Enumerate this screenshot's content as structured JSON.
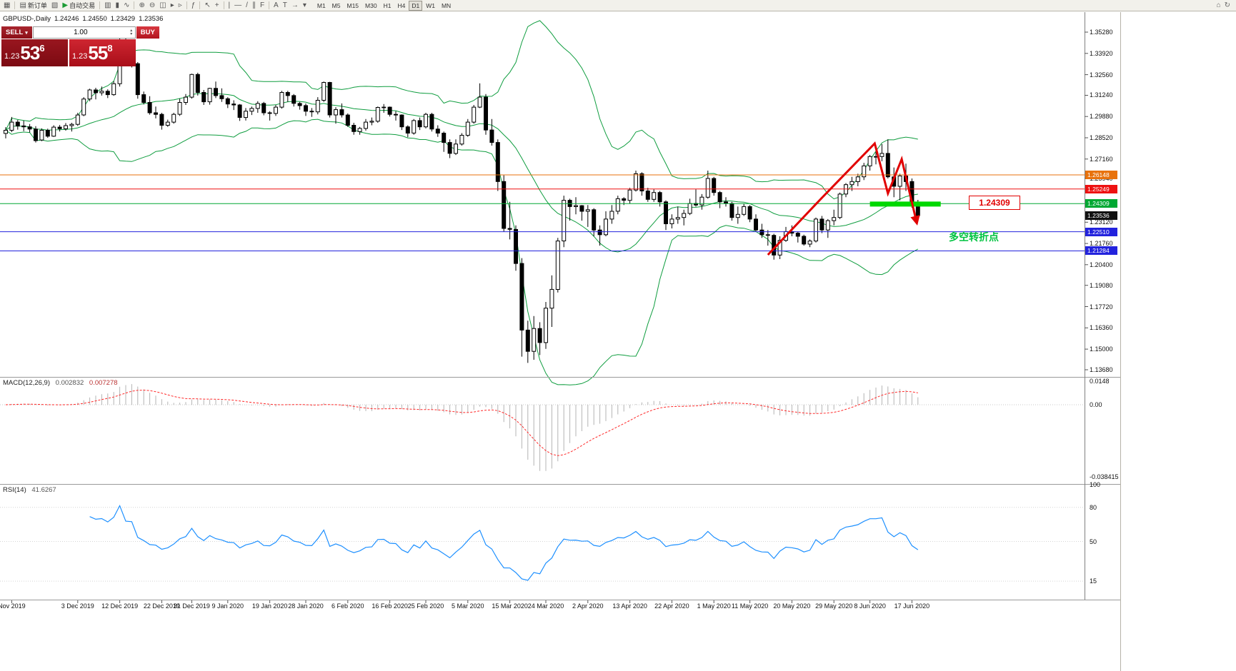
{
  "toolbar": {
    "groups": [
      [
        {
          "name": "charts-grid-button",
          "glyph": "▦"
        }
      ],
      [
        {
          "name": "new-order-button",
          "glyph": "▤",
          "label": "新订单"
        },
        {
          "name": "chart-window-button",
          "glyph": "▧"
        },
        {
          "name": "autotrading-button",
          "glyph": "▶",
          "glyph_color": "#1c9b35",
          "label": "自动交易"
        }
      ],
      [
        {
          "name": "bar-chart-button",
          "glyph": "▥"
        },
        {
          "name": "candlestick-chart-button",
          "glyph": "▮"
        },
        {
          "name": "line-chart-button",
          "glyph": "∿"
        }
      ],
      [
        {
          "name": "zoom-in-button",
          "glyph": "⊕"
        },
        {
          "name": "zoom-out-button",
          "glyph": "⊖"
        },
        {
          "name": "tile-windows-button",
          "glyph": "◫"
        },
        {
          "name": "auto-scroll-button",
          "glyph": "▸"
        },
        {
          "name": "chart-shift-button",
          "glyph": "▹"
        }
      ],
      [
        {
          "name": "indicators-button",
          "glyph": "ƒ"
        }
      ],
      [
        {
          "name": "cursor-button",
          "glyph": "↖"
        },
        {
          "name": "crosshair-button",
          "glyph": "+"
        }
      ],
      [
        {
          "name": "vertical-line-button",
          "glyph": "|"
        },
        {
          "name": "horizontal-line-button",
          "glyph": "―"
        },
        {
          "name": "trendline-button",
          "glyph": "/"
        },
        {
          "name": "channel-button",
          "glyph": "∥"
        },
        {
          "name": "fibonacci-button",
          "glyph": "F"
        }
      ],
      [
        {
          "name": "text-button",
          "glyph": "A"
        },
        {
          "name": "text-label-button",
          "glyph": "T"
        },
        {
          "name": "arrow-tools-button",
          "glyph": "→"
        },
        {
          "name": "shapes-button",
          "glyph": "▾"
        }
      ]
    ],
    "timeframes": [
      "M1",
      "M5",
      "M15",
      "M30",
      "H1",
      "H4",
      "D1",
      "W1",
      "MN"
    ],
    "active_timeframe": "D1",
    "right_items": [
      {
        "name": "connection-status-icon",
        "glyph": "⌂"
      },
      {
        "name": "refresh-icon",
        "glyph": "↻"
      }
    ]
  },
  "chart": {
    "symbol_timeframe": "GBPUSD-,Daily",
    "open": "1.24246",
    "high": "1.24550",
    "low": "1.23429",
    "close": "1.23536"
  },
  "trade_panel": {
    "sell_label": "SELL",
    "buy_label": "BUY",
    "volume": "1.00",
    "sell_price_prefix": "1.23",
    "sell_price_big": "53",
    "sell_price_sup": "6",
    "buy_price_prefix": "1.23",
    "buy_price_big": "55",
    "buy_price_sup": "8"
  },
  "indicators_labels": {
    "macd_name": "MACD(12,26,9)",
    "macd_value": "0.002832",
    "macd_signal": "0.007278",
    "rsi_name": "RSI(14)",
    "rsi_value": "41.6267"
  },
  "annotations": {
    "price_callout": "1.24309",
    "pivot_note": "多空转折点",
    "note_color": "#00c341",
    "trend_color": "#e10000",
    "trend_points": [
      [
        127,
        1.2103
      ],
      [
        136,
        1.2468
      ],
      [
        144.8,
        1.2816
      ],
      [
        147,
        1.2496
      ],
      [
        149.3,
        1.2715
      ],
      [
        151.8,
        1.2309
      ]
    ],
    "support_bar": {
      "i1": 144,
      "i2": 155.8,
      "price": 1.2428,
      "color": "#00d800"
    }
  },
  "chart_data": {
    "type": "candlestick",
    "symbol": "GBPUSD-",
    "timeframe": "Daily",
    "title": "GBPUSD-,Daily 1.24246 1.24550 1.23429 1.23536",
    "bollinger_period": 20,
    "bollinger_deviation": 2,
    "bollinger_color": "#0f9d3f",
    "candles": [
      [
        1.288,
        1.292,
        1.2848,
        1.29
      ],
      [
        1.29,
        1.2985,
        1.2888,
        1.2952
      ],
      [
        1.2952,
        1.2966,
        1.2904,
        1.2928
      ],
      [
        1.2928,
        1.2962,
        1.2894,
        1.2922
      ],
      [
        1.2922,
        1.294,
        1.2886,
        1.2908
      ],
      [
        1.2908,
        1.2926,
        1.2822,
        1.2834
      ],
      [
        1.2838,
        1.2912,
        1.283,
        1.29
      ],
      [
        1.29,
        1.291,
        1.2852,
        1.2862
      ],
      [
        1.2862,
        1.2932,
        1.2858,
        1.292
      ],
      [
        1.292,
        1.2934,
        1.2892,
        1.291
      ],
      [
        1.291,
        1.2946,
        1.2898,
        1.293
      ],
      [
        1.293,
        1.2948,
        1.2892,
        1.2938
      ],
      [
        1.2938,
        1.3012,
        1.2928,
        1.2998
      ],
      [
        1.2998,
        1.3112,
        1.299,
        1.31
      ],
      [
        1.31,
        1.3166,
        1.3086,
        1.3158
      ],
      [
        1.3158,
        1.3172,
        1.3098,
        1.314
      ],
      [
        1.314,
        1.318,
        1.3122,
        1.315
      ],
      [
        1.315,
        1.3162,
        1.3106,
        1.3128
      ],
      [
        1.3128,
        1.3214,
        1.312,
        1.3198
      ],
      [
        1.3198,
        1.3514,
        1.318,
        1.348
      ],
      [
        1.348,
        1.3505,
        1.331,
        1.3332
      ],
      [
        1.3332,
        1.3422,
        1.3302,
        1.3326
      ],
      [
        1.3326,
        1.3336,
        1.3102,
        1.3128
      ],
      [
        1.3128,
        1.3148,
        1.3066,
        1.3078
      ],
      [
        1.3078,
        1.3118,
        1.3,
        1.3012
      ],
      [
        1.3012,
        1.3052,
        1.2976,
        1.3002
      ],
      [
        1.3002,
        1.3012,
        1.2904,
        1.2932
      ],
      [
        1.2932,
        1.2968,
        1.2922,
        1.2952
      ],
      [
        1.2952,
        1.3012,
        1.2942,
        1.3002
      ],
      [
        1.3002,
        1.3102,
        1.2992,
        1.3078
      ],
      [
        1.3078,
        1.3132,
        1.3062,
        1.3112
      ],
      [
        1.3112,
        1.3262,
        1.3102,
        1.3257
      ],
      [
        1.3257,
        1.3268,
        1.3122,
        1.3142
      ],
      [
        1.3142,
        1.3158,
        1.3062,
        1.3082
      ],
      [
        1.3082,
        1.3172,
        1.3064,
        1.3168
      ],
      [
        1.3168,
        1.3212,
        1.3106,
        1.3122
      ],
      [
        1.3122,
        1.3168,
        1.3082,
        1.3102
      ],
      [
        1.3102,
        1.3112,
        1.3042,
        1.3068
      ],
      [
        1.3068,
        1.3092,
        1.303,
        1.3062
      ],
      [
        1.3062,
        1.3068,
        1.296,
        1.2982
      ],
      [
        1.2982,
        1.3042,
        1.2962,
        1.3022
      ],
      [
        1.3022,
        1.3052,
        1.2998,
        1.304
      ],
      [
        1.304,
        1.3086,
        1.3012,
        1.3072
      ],
      [
        1.3072,
        1.3082,
        1.2996,
        1.3012
      ],
      [
        1.3012,
        1.3022,
        1.2962,
        1.3008
      ],
      [
        1.3008,
        1.3062,
        1.2992,
        1.3048
      ],
      [
        1.3048,
        1.3152,
        1.3038,
        1.3142
      ],
      [
        1.3142,
        1.3152,
        1.3082,
        1.3122
      ],
      [
        1.3122,
        1.3132,
        1.3052,
        1.3072
      ],
      [
        1.3072,
        1.3082,
        1.3032,
        1.3058
      ],
      [
        1.3058,
        1.3072,
        1.2992,
        1.3022
      ],
      [
        1.3022,
        1.3042,
        1.2986,
        1.3018
      ],
      [
        1.3018,
        1.3112,
        1.3002,
        1.3092
      ],
      [
        1.3092,
        1.3212,
        1.3082,
        1.3206
      ],
      [
        1.3206,
        1.321,
        1.2982,
        1.2998
      ],
      [
        1.2998,
        1.3048,
        1.2942,
        1.3032
      ],
      [
        1.3032,
        1.3072,
        1.2982,
        1.2998
      ],
      [
        1.2998,
        1.3008,
        1.2922,
        1.2932
      ],
      [
        1.2932,
        1.2948,
        1.2872,
        1.2892
      ],
      [
        1.2892,
        1.2922,
        1.2872,
        1.2912
      ],
      [
        1.2912,
        1.2972,
        1.2898,
        1.2952
      ],
      [
        1.2952,
        1.2982,
        1.2932,
        1.2958
      ],
      [
        1.2958,
        1.3052,
        1.2948,
        1.3046
      ],
      [
        1.3046,
        1.3068,
        1.3012,
        1.3048
      ],
      [
        1.3048,
        1.3052,
        1.2988,
        1.3002
      ],
      [
        1.3002,
        1.3022,
        1.2962,
        1.2998
      ],
      [
        1.2998,
        1.3002,
        1.2902,
        1.2922
      ],
      [
        1.2922,
        1.2932,
        1.2856,
        1.2882
      ],
      [
        1.2882,
        1.2972,
        1.2872,
        1.2962
      ],
      [
        1.2962,
        1.2982,
        1.2902,
        1.2922
      ],
      [
        1.2922,
        1.3012,
        1.2912,
        1.3002
      ],
      [
        1.3002,
        1.3012,
        1.2892,
        1.2908
      ],
      [
        1.2908,
        1.2932,
        1.2858,
        1.2882
      ],
      [
        1.2882,
        1.2892,
        1.2762,
        1.2822
      ],
      [
        1.2822,
        1.2842,
        1.2722,
        1.2752
      ],
      [
        1.2752,
        1.2842,
        1.2742,
        1.2812
      ],
      [
        1.2812,
        1.2882,
        1.2802,
        1.2868
      ],
      [
        1.2868,
        1.2972,
        1.2858,
        1.2952
      ],
      [
        1.2952,
        1.3062,
        1.2942,
        1.3048
      ],
      [
        1.3048,
        1.32,
        1.3042,
        1.3112
      ],
      [
        1.3112,
        1.3132,
        1.2872,
        1.2902
      ],
      [
        1.2902,
        1.2972,
        1.2802,
        1.2822
      ],
      [
        1.2822,
        1.2842,
        1.2512,
        1.2572
      ],
      [
        1.2572,
        1.2612,
        1.2252,
        1.2272
      ],
      [
        1.2272,
        1.2442,
        1.2202,
        1.2266
      ],
      [
        1.2266,
        1.2292,
        1.2002,
        1.2048
      ],
      [
        1.2048,
        1.2082,
        1.1452,
        1.1622
      ],
      [
        1.1622,
        1.1682,
        1.1412,
        1.1486
      ],
      [
        1.1486,
        1.1712,
        1.1432,
        1.1632
      ],
      [
        1.1632,
        1.1672,
        1.1462,
        1.1542
      ],
      [
        1.1542,
        1.1802,
        1.1502,
        1.1762
      ],
      [
        1.1762,
        1.1972,
        1.1642,
        1.1882
      ],
      [
        1.1882,
        1.2212,
        1.1862,
        1.2192
      ],
      [
        1.2192,
        1.2482,
        1.2152,
        1.2452
      ],
      [
        1.2452,
        1.2462,
        1.2322,
        1.2412
      ],
      [
        1.2412,
        1.2472,
        1.2362,
        1.2418
      ],
      [
        1.2418,
        1.2422,
        1.2322,
        1.2382
      ],
      [
        1.2382,
        1.2422,
        1.2282,
        1.2392
      ],
      [
        1.2392,
        1.2402,
        1.2222,
        1.2262
      ],
      [
        1.2262,
        1.2292,
        1.2162,
        1.2232
      ],
      [
        1.2232,
        1.2382,
        1.2222,
        1.2332
      ],
      [
        1.2332,
        1.2422,
        1.2302,
        1.2382
      ],
      [
        1.2382,
        1.2482,
        1.2362,
        1.2462
      ],
      [
        1.2462,
        1.2472,
        1.2422,
        1.2452
      ],
      [
        1.2452,
        1.2532,
        1.2432,
        1.2518
      ],
      [
        1.2518,
        1.2642,
        1.2508,
        1.2622
      ],
      [
        1.2622,
        1.2632,
        1.2482,
        1.2512
      ],
      [
        1.2512,
        1.2532,
        1.2442,
        1.2458
      ],
      [
        1.2458,
        1.2522,
        1.2442,
        1.2502
      ],
      [
        1.2502,
        1.2512,
        1.2412,
        1.2442
      ],
      [
        1.2442,
        1.2452,
        1.2262,
        1.2302
      ],
      [
        1.2302,
        1.2362,
        1.2272,
        1.2332
      ],
      [
        1.2332,
        1.2412,
        1.2302,
        1.2342
      ],
      [
        1.2342,
        1.2392,
        1.2292,
        1.2368
      ],
      [
        1.2368,
        1.2462,
        1.2358,
        1.2432
      ],
      [
        1.2432,
        1.2522,
        1.2412,
        1.2422
      ],
      [
        1.2422,
        1.2492,
        1.2392,
        1.2472
      ],
      [
        1.2472,
        1.2642,
        1.2462,
        1.2592
      ],
      [
        1.2592,
        1.2602,
        1.2482,
        1.2502
      ],
      [
        1.2502,
        1.2512,
        1.2402,
        1.2442
      ],
      [
        1.2442,
        1.2472,
        1.2412,
        1.2432
      ],
      [
        1.2432,
        1.2442,
        1.2322,
        1.2342
      ],
      [
        1.2342,
        1.2412,
        1.2302,
        1.2362
      ],
      [
        1.2362,
        1.2432,
        1.2352,
        1.2412
      ],
      [
        1.2412,
        1.2422,
        1.2312,
        1.2332
      ],
      [
        1.2332,
        1.2362,
        1.2252,
        1.2262
      ],
      [
        1.2262,
        1.2302,
        1.2212,
        1.2232
      ],
      [
        1.2232,
        1.2262,
        1.2162,
        1.2228
      ],
      [
        1.2228,
        1.2238,
        1.2072,
        1.2102
      ],
      [
        1.2102,
        1.2222,
        1.2076,
        1.2196
      ],
      [
        1.2196,
        1.2282,
        1.2186,
        1.2252
      ],
      [
        1.2252,
        1.2292,
        1.2222,
        1.2242
      ],
      [
        1.2242,
        1.2252,
        1.2182,
        1.2222
      ],
      [
        1.2222,
        1.2232,
        1.2162,
        1.2172
      ],
      [
        1.2172,
        1.2202,
        1.2152,
        1.2192
      ],
      [
        1.2192,
        1.2342,
        1.2182,
        1.2332
      ],
      [
        1.2332,
        1.2352,
        1.2242,
        1.2262
      ],
      [
        1.2262,
        1.2332,
        1.2212,
        1.2322
      ],
      [
        1.2322,
        1.2392,
        1.2292,
        1.2342
      ],
      [
        1.2342,
        1.2502,
        1.2332,
        1.2492
      ],
      [
        1.2492,
        1.2562,
        1.2472,
        1.2552
      ],
      [
        1.2552,
        1.2602,
        1.2512,
        1.2572
      ],
      [
        1.2572,
        1.2622,
        1.2542,
        1.2602
      ],
      [
        1.2602,
        1.2692,
        1.2582,
        1.2672
      ],
      [
        1.2672,
        1.2742,
        1.2642,
        1.2732
      ],
      [
        1.2732,
        1.2762,
        1.2682,
        1.2732
      ],
      [
        1.2732,
        1.2812,
        1.2702,
        1.2752
      ],
      [
        1.2752,
        1.2842,
        1.2592,
        1.2602
      ],
      [
        1.2602,
        1.2662,
        1.2472,
        1.2542
      ],
      [
        1.2542,
        1.2622,
        1.2452,
        1.2608
      ],
      [
        1.2608,
        1.2687,
        1.2512,
        1.2572
      ],
      [
        1.2572,
        1.2592,
        1.2405,
        1.2425
      ],
      [
        1.24246,
        1.2455,
        1.23429,
        1.23536
      ]
    ],
    "hlines": [
      {
        "price": 1.26148,
        "label": "1.26148",
        "color": "#e8720c"
      },
      {
        "price": 1.25249,
        "label": "1.25249",
        "color": "#ee1111"
      },
      {
        "price": 1.24309,
        "label": "1.24309",
        "color": "#00a832"
      },
      {
        "price": 1.2251,
        "label": "1.22510",
        "color": "#2222dd"
      },
      {
        "price": 1.21284,
        "label": "1.21284",
        "color": "#2222dd"
      }
    ],
    "current_price": {
      "value": 1.23536,
      "label": "1.23536",
      "color": "#111111"
    },
    "y_ticks": [
      "1.35280",
      "1.33920",
      "1.32560",
      "1.31240",
      "1.29880",
      "1.28520",
      "1.27160",
      "1.25940",
      "1.23120",
      "1.21760",
      "1.20400",
      "1.19080",
      "1.17720",
      "1.16360",
      "1.15000",
      "1.13680"
    ],
    "x_labels": [
      {
        "t": "Nov 2019",
        "i": 1
      },
      {
        "t": "3 Dec 2019",
        "i": 12
      },
      {
        "t": "12 Dec 2019",
        "i": 19
      },
      {
        "t": "22 Dec 2019",
        "i": 26
      },
      {
        "t": "31 Dec 2019",
        "i": 31
      },
      {
        "t": "9 Jan 2020",
        "i": 37
      },
      {
        "t": "19 Jan 2020",
        "i": 44
      },
      {
        "t": "28 Jan 2020",
        "i": 50
      },
      {
        "t": "6 Feb 2020",
        "i": 57
      },
      {
        "t": "16 Feb 2020",
        "i": 64
      },
      {
        "t": "25 Feb 2020",
        "i": 70
      },
      {
        "t": "5 Mar 2020",
        "i": 77
      },
      {
        "t": "15 Mar 2020",
        "i": 84
      },
      {
        "t": "24 Mar 2020",
        "i": 90
      },
      {
        "t": "2 Apr 2020",
        "i": 97
      },
      {
        "t": "13 Apr 2020",
        "i": 104
      },
      {
        "t": "22 Apr 2020",
        "i": 111
      },
      {
        "t": "1 May 2020",
        "i": 118
      },
      {
        "t": "11 May 2020",
        "i": 124
      },
      {
        "t": "20 May 2020",
        "i": 131
      },
      {
        "t": "29 May 2020",
        "i": 138
      },
      {
        "t": "8 Jun 2020",
        "i": 144
      },
      {
        "t": "17 Jun 2020",
        "i": 151
      }
    ],
    "macd": {
      "fast": 12,
      "slow": 26,
      "signal": 9,
      "axis_labels": [
        "0.0148",
        "0.00",
        "-0.038415"
      ],
      "histogram_color": "#b4b4b4",
      "signal_color": "#ff2a2a"
    },
    "rsi": {
      "period": 14,
      "levels": [
        "100",
        "80",
        "50",
        "15"
      ],
      "line_color": "#1e90ff"
    }
  }
}
